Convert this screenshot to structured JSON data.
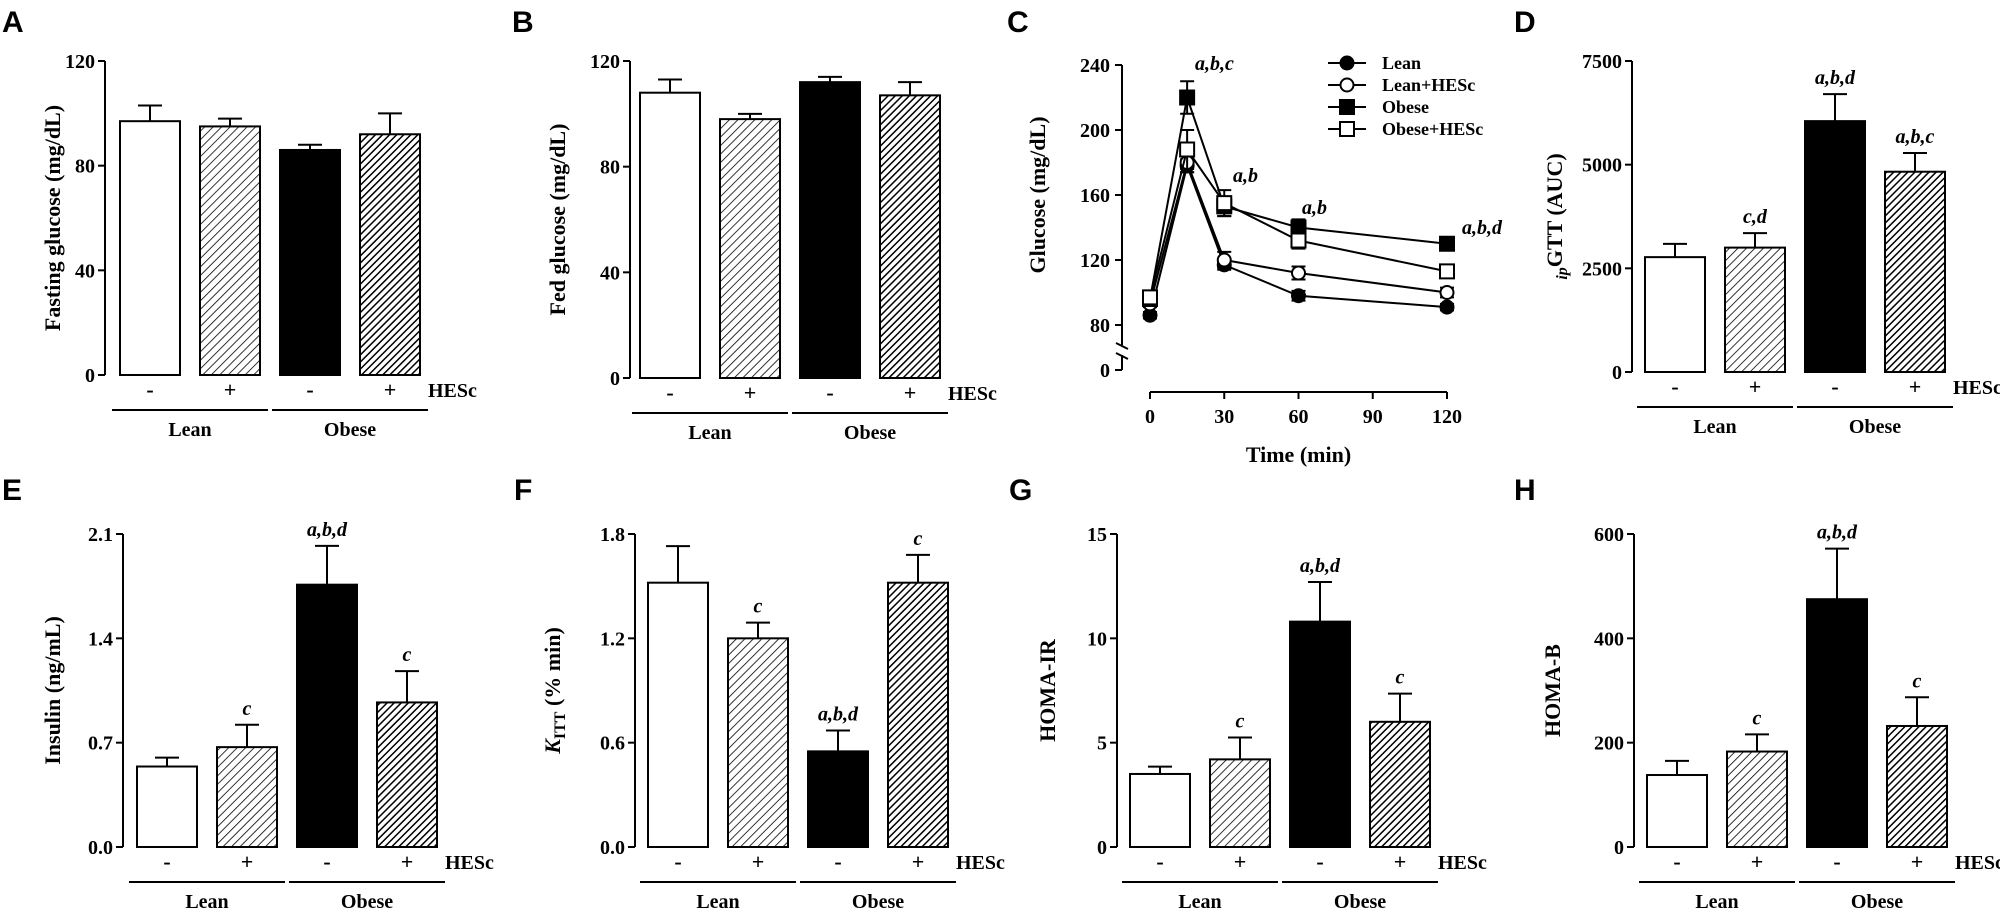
{
  "colors": {
    "ink": "#000000",
    "fill_white": "#ffffff"
  },
  "chart_data": [
    {
      "id": "A",
      "type": "bar",
      "panel_label": "A",
      "ylabel": "Fasting glucose (mg/dL)",
      "ylim": [
        0,
        120
      ],
      "yticks": [
        "0",
        "40",
        "80",
        "120"
      ],
      "bars": [
        {
          "group": "Lean",
          "hesc": "-",
          "value": 97,
          "err": 6,
          "style": "white",
          "sig": ""
        },
        {
          "group": "Lean",
          "hesc": "+",
          "value": 95,
          "err": 3,
          "style": "hatch_light",
          "sig": ""
        },
        {
          "group": "Obese",
          "hesc": "-",
          "value": 86,
          "err": 2,
          "style": "black",
          "sig": ""
        },
        {
          "group": "Obese",
          "hesc": "+",
          "value": 92,
          "err": 8,
          "style": "hatch_dark",
          "sig": ""
        }
      ],
      "groups": [
        "Lean",
        "Obese"
      ],
      "treatment_label": "HESc"
    },
    {
      "id": "B",
      "type": "bar",
      "panel_label": "B",
      "ylabel": "Fed glucose (mg/dL)",
      "ylim": [
        0,
        120
      ],
      "yticks": [
        "0",
        "40",
        "80",
        "120"
      ],
      "bars": [
        {
          "group": "Lean",
          "hesc": "-",
          "value": 108,
          "err": 5,
          "style": "white",
          "sig": ""
        },
        {
          "group": "Lean",
          "hesc": "+",
          "value": 98,
          "err": 2,
          "style": "hatch_light",
          "sig": ""
        },
        {
          "group": "Obese",
          "hesc": "-",
          "value": 112,
          "err": 2,
          "style": "black",
          "sig": ""
        },
        {
          "group": "Obese",
          "hesc": "+",
          "value": 107,
          "err": 5,
          "style": "hatch_dark",
          "sig": ""
        }
      ],
      "groups": [
        "Lean",
        "Obese"
      ],
      "treatment_label": "HESc"
    },
    {
      "id": "C",
      "type": "line",
      "panel_label": "C",
      "ylabel": "Glucose (mg/dL)",
      "xlabel": "Time (min)",
      "ylim": [
        80,
        240
      ],
      "yticks": [
        "80",
        "120",
        "160",
        "200",
        "240"
      ],
      "y_zero_tick": "0",
      "x": [
        0,
        15,
        30,
        60,
        120
      ],
      "xticks": [
        "0",
        "30",
        "60",
        "90",
        "120"
      ],
      "xlim": [
        0,
        120
      ],
      "series": [
        {
          "name": "Lean",
          "marker": "filled_circle",
          "values": [
            86,
            178,
            117,
            98,
            91
          ],
          "err": [
            2,
            4,
            3,
            3,
            2
          ]
        },
        {
          "name": "Lean+HESc",
          "marker": "open_circle",
          "values": [
            93,
            180,
            120,
            112,
            100
          ],
          "err": [
            2,
            6,
            5,
            4,
            3
          ]
        },
        {
          "name": "Obese",
          "marker": "filled_square",
          "values": [
            96,
            220,
            153,
            140,
            130
          ],
          "err": [
            3,
            10,
            6,
            5,
            3
          ]
        },
        {
          "name": "Obese+HESc",
          "marker": "open_square",
          "values": [
            97,
            188,
            155,
            132,
            113
          ],
          "err": [
            3,
            12,
            8,
            5,
            4
          ]
        }
      ],
      "annotations": [
        {
          "x": 15,
          "text": "a,b,c"
        },
        {
          "x": 30,
          "text": "a,b"
        },
        {
          "x": 60,
          "text": "a,b"
        },
        {
          "x": 120,
          "text": "a,b,d"
        }
      ],
      "legend_position": "top-right"
    },
    {
      "id": "D",
      "type": "bar",
      "panel_label": "D",
      "ylabel_sub": "ip",
      "ylabel": "GTT (AUC)",
      "ylim": [
        0,
        7500
      ],
      "yticks": [
        "0",
        "2500",
        "5000",
        "7500"
      ],
      "bars": [
        {
          "group": "Lean",
          "hesc": "-",
          "value": 2770,
          "err": 320,
          "style": "white",
          "sig": ""
        },
        {
          "group": "Lean",
          "hesc": "+",
          "value": 3000,
          "err": 350,
          "style": "hatch_light",
          "sig": "c,d"
        },
        {
          "group": "Obese",
          "hesc": "-",
          "value": 6050,
          "err": 650,
          "style": "black",
          "sig": "a,b,d"
        },
        {
          "group": "Obese",
          "hesc": "+",
          "value": 4830,
          "err": 450,
          "style": "hatch_dark",
          "sig": "a,b,c"
        }
      ],
      "groups": [
        "Lean",
        "Obese"
      ],
      "treatment_label": "HESc"
    },
    {
      "id": "E",
      "type": "bar",
      "panel_label": "E",
      "ylabel": "Insulin (ng/mL)",
      "ylim": [
        0,
        2.1
      ],
      "yticks": [
        "0.0",
        "0.7",
        "1.4",
        "2.1"
      ],
      "bars": [
        {
          "group": "Lean",
          "hesc": "-",
          "value": 0.54,
          "err": 0.06,
          "style": "white",
          "sig": ""
        },
        {
          "group": "Lean",
          "hesc": "+",
          "value": 0.67,
          "err": 0.15,
          "style": "hatch_light",
          "sig": "c"
        },
        {
          "group": "Obese",
          "hesc": "-",
          "value": 1.76,
          "err": 0.26,
          "style": "black",
          "sig": "a,b,d"
        },
        {
          "group": "Obese",
          "hesc": "+",
          "value": 0.97,
          "err": 0.21,
          "style": "hatch_dark",
          "sig": "c"
        }
      ],
      "groups": [
        "Lean",
        "Obese"
      ],
      "treatment_label": "HESc"
    },
    {
      "id": "F",
      "type": "bar",
      "panel_label": "F",
      "ylabel_main": "K",
      "ylabel_sub": "ITT",
      "ylabel": "(% min)",
      "ylim": [
        0,
        1.8
      ],
      "yticks": [
        "0.0",
        "0.6",
        "1.2",
        "1.8"
      ],
      "bars": [
        {
          "group": "Lean",
          "hesc": "-",
          "value": 1.52,
          "err": 0.21,
          "style": "white",
          "sig": ""
        },
        {
          "group": "Lean",
          "hesc": "+",
          "value": 1.2,
          "err": 0.09,
          "style": "hatch_light",
          "sig": "c"
        },
        {
          "group": "Obese",
          "hesc": "-",
          "value": 0.55,
          "err": 0.12,
          "style": "black",
          "sig": "a,b,d"
        },
        {
          "group": "Obese",
          "hesc": "+",
          "value": 1.52,
          "err": 0.16,
          "style": "hatch_dark",
          "sig": "c"
        }
      ],
      "groups": [
        "Lean",
        "Obese"
      ],
      "treatment_label": "HESc"
    },
    {
      "id": "G",
      "type": "bar",
      "panel_label": "G",
      "ylabel": "HOMA-IR",
      "ylim": [
        0,
        15
      ],
      "yticks": [
        "0",
        "5",
        "10",
        "15"
      ],
      "bars": [
        {
          "group": "Lean",
          "hesc": "-",
          "value": 3.5,
          "err": 0.35,
          "style": "white",
          "sig": ""
        },
        {
          "group": "Lean",
          "hesc": "+",
          "value": 4.2,
          "err": 1.05,
          "style": "hatch_light",
          "sig": "c"
        },
        {
          "group": "Obese",
          "hesc": "-",
          "value": 10.8,
          "err": 1.9,
          "style": "black",
          "sig": "a,b,d"
        },
        {
          "group": "Obese",
          "hesc": "+",
          "value": 6.0,
          "err": 1.35,
          "style": "hatch_dark",
          "sig": "c"
        }
      ],
      "groups": [
        "Lean",
        "Obese"
      ],
      "treatment_label": "HESc"
    },
    {
      "id": "H",
      "type": "bar",
      "panel_label": "H",
      "ylabel": "HOMA-B",
      "ylim": [
        0,
        600
      ],
      "yticks": [
        "0",
        "200",
        "400",
        "600"
      ],
      "bars": [
        {
          "group": "Lean",
          "hesc": "-",
          "value": 138,
          "err": 27,
          "style": "white",
          "sig": ""
        },
        {
          "group": "Lean",
          "hesc": "+",
          "value": 183,
          "err": 33,
          "style": "hatch_light",
          "sig": "c"
        },
        {
          "group": "Obese",
          "hesc": "-",
          "value": 475,
          "err": 97,
          "style": "black",
          "sig": "a,b,d"
        },
        {
          "group": "Obese",
          "hesc": "+",
          "value": 232,
          "err": 55,
          "style": "hatch_dark",
          "sig": "c"
        }
      ],
      "groups": [
        "Lean",
        "Obese"
      ],
      "treatment_label": "HESc"
    }
  ]
}
